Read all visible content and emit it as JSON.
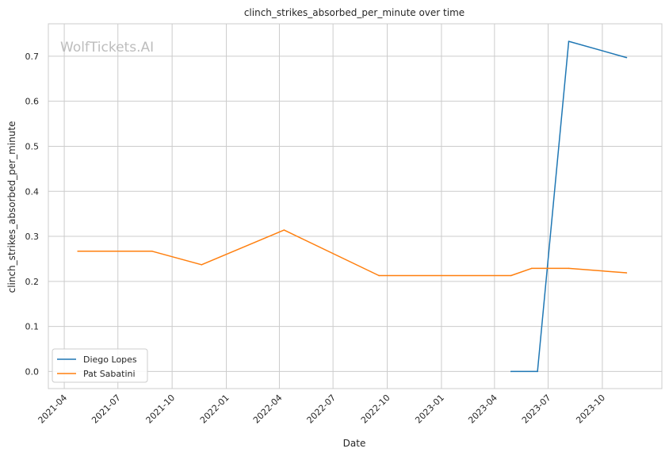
{
  "chart_data": {
    "type": "line",
    "title": "clinch_strikes_absorbed_per_minute over time",
    "xlabel": "Date",
    "ylabel": "clinch_strikes_absorbed_per_minute",
    "watermark": "WolfTickets.AI",
    "grid": true,
    "legend_position": "lower-left",
    "x_is_date": true,
    "xlim": [
      "2021-03-05",
      "2024-01-10"
    ],
    "ylim": [
      -0.038,
      0.772
    ],
    "x_ticks": [
      "2021-04-01",
      "2021-07-01",
      "2021-10-01",
      "2022-01-01",
      "2022-04-01",
      "2022-07-01",
      "2022-10-01",
      "2023-01-01",
      "2023-04-01",
      "2023-07-01",
      "2023-10-01"
    ],
    "x_tick_labels": [
      "2021-04",
      "2021-07",
      "2021-10",
      "2022-01",
      "2022-04",
      "2022-07",
      "2022-10",
      "2023-01",
      "2023-04",
      "2023-07",
      "2023-10"
    ],
    "y_ticks": [
      0.0,
      0.1,
      0.2,
      0.3,
      0.4,
      0.5,
      0.6,
      0.7
    ],
    "y_tick_labels": [
      "0.0",
      "0.1",
      "0.2",
      "0.3",
      "0.4",
      "0.5",
      "0.6",
      "0.7"
    ],
    "series": [
      {
        "name": "Diego Lopes",
        "color": "#1f77b4",
        "x": [
          "2023-04-29",
          "2023-06-13",
          "2023-08-05",
          "2023-11-11"
        ],
        "y": [
          0.0,
          0.0,
          0.733,
          0.697
        ]
      },
      {
        "name": "Pat Sabatini",
        "color": "#ff7f0e",
        "x": [
          "2021-04-24",
          "2021-08-28",
          "2021-11-20",
          "2022-04-09",
          "2022-09-17",
          "2023-04-29",
          "2023-06-03",
          "2023-08-05",
          "2023-11-11"
        ],
        "y": [
          0.267,
          0.267,
          0.237,
          0.314,
          0.213,
          0.213,
          0.229,
          0.229,
          0.219
        ]
      }
    ]
  }
}
